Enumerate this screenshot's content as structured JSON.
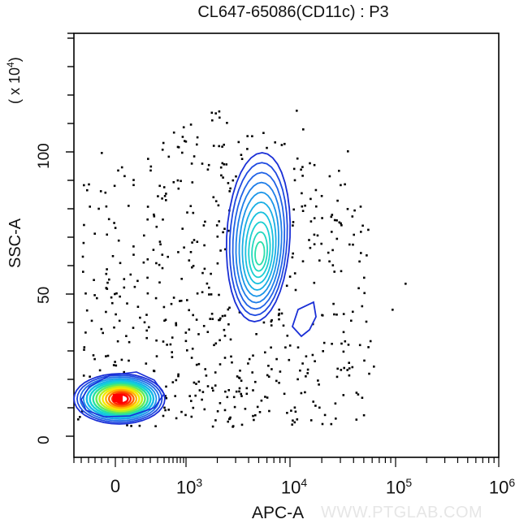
{
  "chart_data": {
    "type": "scatter",
    "subtype": "flow-cytometry-contour-with-outliers",
    "title": "CL647-65086(CD11c) : P3",
    "xlabel": "APC-A",
    "ylabel": "SSC-A",
    "y_multiplier": "(x 10^4)",
    "x_scale": "biexponential",
    "x_ticks": [
      "0",
      "10^3",
      "10^4",
      "10^5",
      "10^6"
    ],
    "y_ticks": [
      0,
      50,
      100
    ],
    "ylim": [
      -7,
      142
    ],
    "populations": [
      {
        "name": "negative",
        "x_center": "~0-100",
        "y_center": 12,
        "peak_color": "#ff0000",
        "note": "dense population with red/yellow core"
      },
      {
        "name": "CD11c positive",
        "x_center": "~5x10^3",
        "y_center": 64,
        "y_range": [
          41,
          97
        ],
        "peak_color": "#22ddaa"
      },
      {
        "name": "small cluster",
        "x_center": "~1.5x10^4",
        "y_center": 42,
        "y_range": [
          35,
          47
        ]
      }
    ],
    "grid": false,
    "legend": null
  },
  "labels": {
    "title": "CL647-65086(CD11c) : P3",
    "ylabel": "SSC-A",
    "yexp_base": "( x 10",
    "yexp_pow": "4",
    "yexp_close": ")",
    "xlabel": "APC-A",
    "watermark": "WWW.PTGLAB.COM",
    "ytick_0": "0",
    "ytick_50": "50",
    "ytick_100": "100",
    "xtick_0": "0",
    "xtick_base": "10",
    "xtick_p3": "3",
    "xtick_p4": "4",
    "xtick_p5": "5",
    "xtick_p6": "6"
  }
}
